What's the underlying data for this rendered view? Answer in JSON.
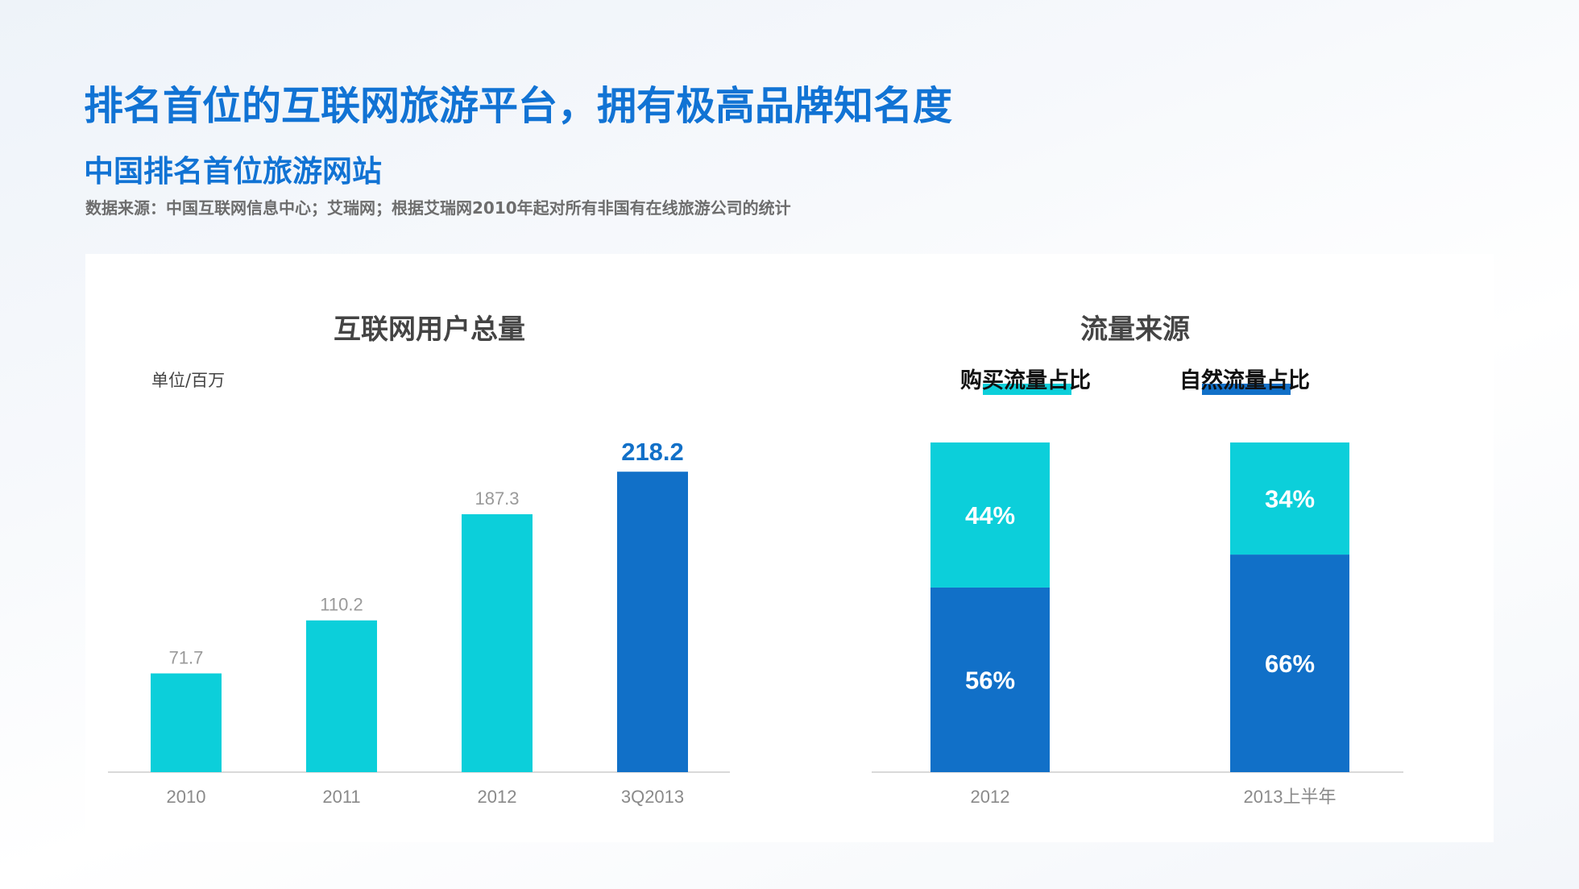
{
  "header": {
    "title": "排名首位的互联网旅游平台，拥有极高品牌知名度",
    "subtitle": "中国排名首位旅游网站",
    "source": "数据来源：中国互联网信息中心；艾瑞网；根据艾瑞网2010年起对所有非国有在线旅游公司的统计"
  },
  "colors": {
    "accent": "#1173d4",
    "bar_light": "#0ccfda",
    "bar_dark": "#1170c8"
  },
  "chart_data": [
    {
      "type": "bar",
      "title": "互联网用户总量",
      "unit": "单位/百万",
      "categories": [
        "2010",
        "2011",
        "2012",
        "3Q2013"
      ],
      "values": [
        71.7,
        110.2,
        187.3,
        218.2
      ],
      "value_labels": [
        "71.7",
        "110.2",
        "187.3",
        "218.2"
      ],
      "highlight_index": 3,
      "ylim": [
        0,
        240
      ]
    },
    {
      "type": "bar",
      "stacked": true,
      "title": "流量来源",
      "categories": [
        "2012",
        "2013上半年"
      ],
      "series": [
        {
          "name": "自然流量占比",
          "values": [
            56,
            66
          ],
          "labels": [
            "56%",
            "66%"
          ],
          "color": "#1170c8"
        },
        {
          "name": "购买流量占比",
          "values": [
            44,
            34
          ],
          "labels": [
            "44%",
            "34%"
          ],
          "color": "#0ccfda"
        }
      ],
      "legend": [
        "购买流量占比",
        "自然流量占比"
      ],
      "ylim": [
        0,
        100
      ]
    }
  ]
}
